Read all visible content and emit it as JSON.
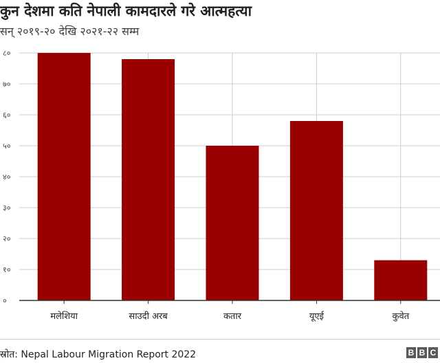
{
  "header": {
    "title": "कुन देशमा कति नेपाली कामदारले गरे आत्महत्या",
    "subtitle": "सन् २०१९-२० देखि २०२१-२२ सम्म"
  },
  "footer": {
    "source": "स्रोत: Nepal Labour Migration Report 2022",
    "logo_letters": [
      "B",
      "B",
      "C"
    ]
  },
  "colors": {
    "bar": "#990000",
    "grid": "#cccccc",
    "axis": "#333333"
  },
  "chart_data": {
    "type": "bar",
    "title": "कुन देशमा कति नेपाली कामदारले गरे आत्महत्या",
    "subtitle": "सन् २०१९-२० देखि २०२१-२२ सम्म",
    "categories": [
      "मलेशिया",
      "साउदी अरब",
      "कतार",
      "यूएई",
      "कुवेत"
    ],
    "values": [
      80,
      78,
      50,
      58,
      13
    ],
    "ylim": [
      0,
      80
    ],
    "yticks": [
      0,
      10,
      20,
      30,
      40,
      50,
      60,
      70,
      80
    ],
    "ytick_labels": [
      "०",
      "१०",
      "२०",
      "३०",
      "४०",
      "५०",
      "६०",
      "७०",
      "८०"
    ],
    "grid": true
  }
}
